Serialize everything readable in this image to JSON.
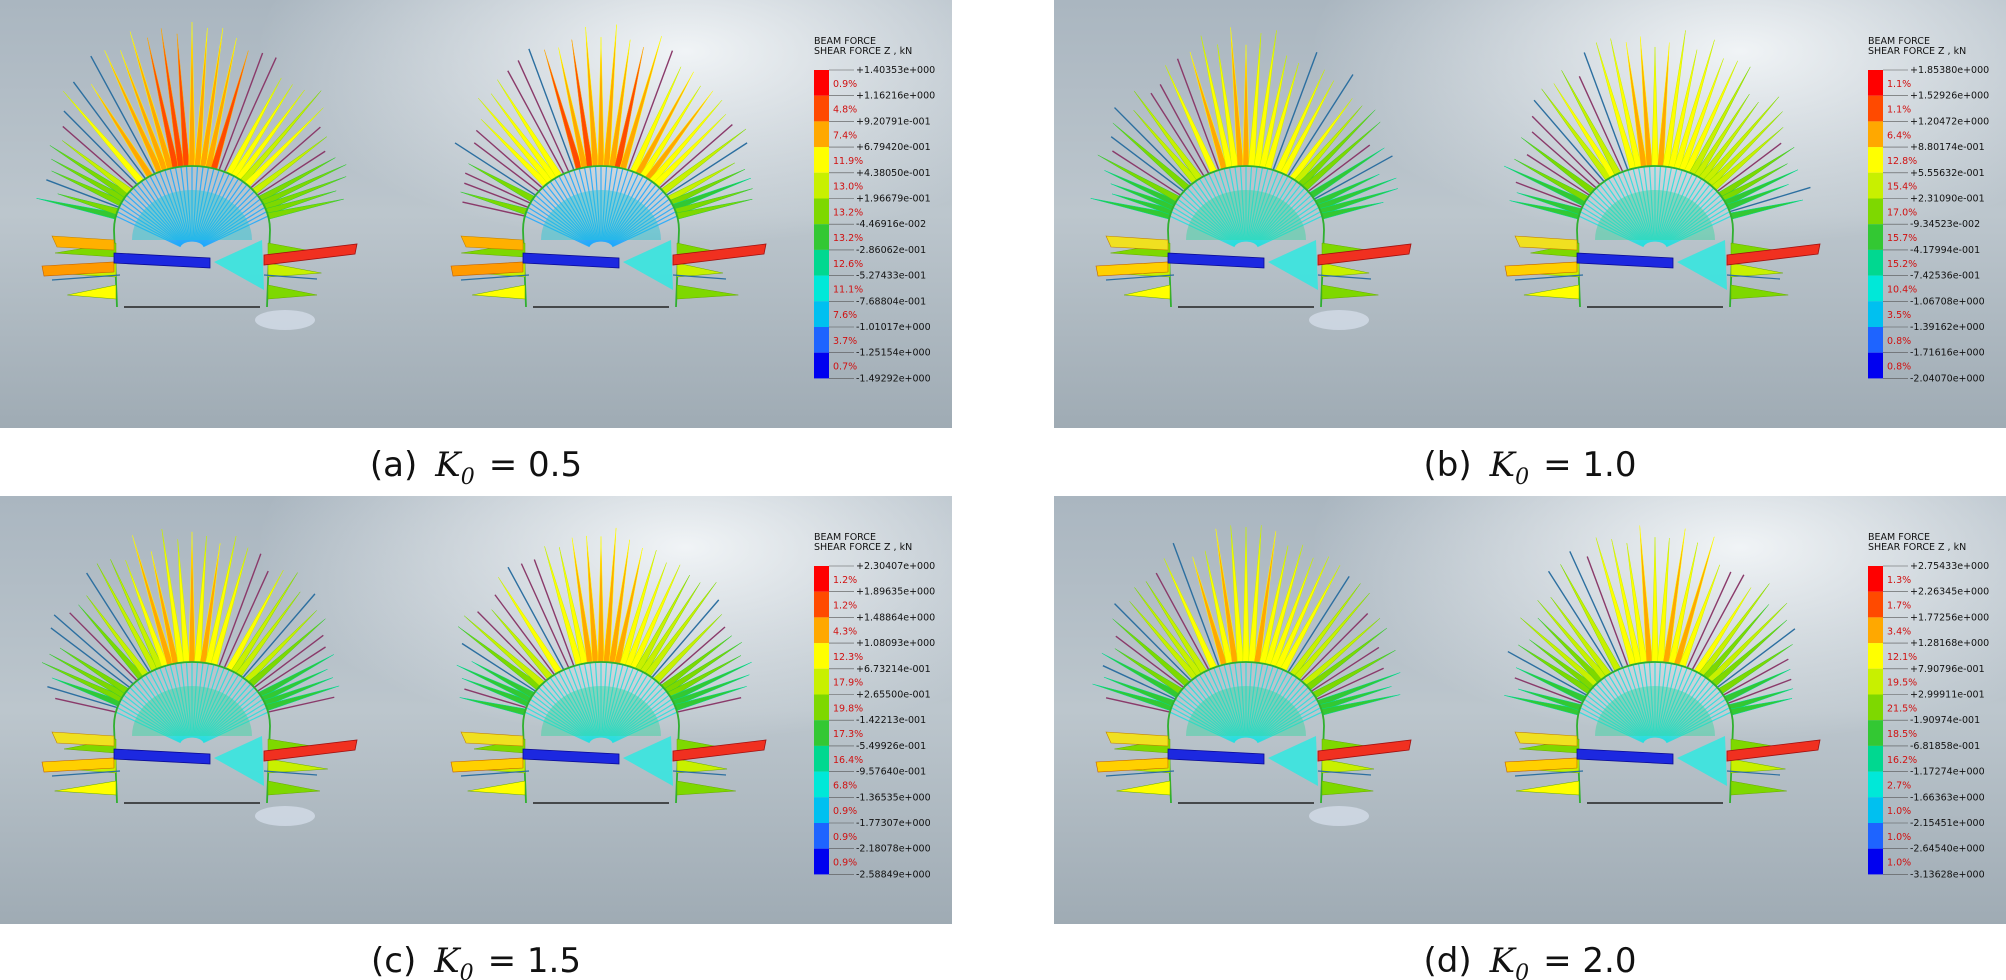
{
  "legend_colors": [
    "#ff0000",
    "#ff4a00",
    "#ffa800",
    "#ffff00",
    "#c8f000",
    "#7ed800",
    "#33c833",
    "#00d890",
    "#00e8d8",
    "#00c0f0",
    "#1e64ff",
    "#0000f0"
  ],
  "panels": [
    {
      "legend": {
        "title": [
          "BEAM FORCE",
          "SHEAR FORCE Z , kN"
        ],
        "values": [
          "+1.40353e+000",
          "+1.16216e+000",
          "+9.20791e-001",
          "+6.79420e-001",
          "+4.38050e-001",
          "+1.96679e-001",
          "-4.46916e-002",
          "-2.86062e-001",
          "-5.27433e-001",
          "-7.68804e-001",
          "-1.01017e+000",
          "-1.25154e+000",
          "-1.49292e+000"
        ],
        "percents": [
          "0.9%",
          "4.8%",
          "7.4%",
          "11.9%",
          "13.0%",
          "13.2%",
          "13.2%",
          "12.6%",
          "11.1%",
          "7.6%",
          "3.7%",
          "0.7%"
        ]
      },
      "caption": {
        "label": "(a)",
        "symbol": "K",
        "subscript": "0",
        "equals": "= 0.5"
      }
    },
    {
      "legend": {
        "title": [
          "BEAM FORCE",
          "SHEAR FORCE Z , kN"
        ],
        "values": [
          "+1.85380e+000",
          "+1.52926e+000",
          "+1.20472e+000",
          "+8.80174e-001",
          "+5.55632e-001",
          "+2.31090e-001",
          "-9.34523e-002",
          "-4.17994e-001",
          "-7.42536e-001",
          "-1.06708e+000",
          "-1.39162e+000",
          "-1.71616e+000",
          "-2.04070e+000"
        ],
        "percents": [
          "1.1%",
          "1.1%",
          "6.4%",
          "12.8%",
          "15.4%",
          "17.0%",
          "15.7%",
          "15.2%",
          "10.4%",
          "3.5%",
          "0.8%",
          "0.8%"
        ]
      },
      "caption": {
        "label": "(b)",
        "symbol": "K",
        "subscript": "0",
        "equals": "= 1.0"
      }
    },
    {
      "legend": {
        "title": [
          "BEAM FORCE",
          "SHEAR FORCE Z , kN"
        ],
        "values": [
          "+2.30407e+000",
          "+1.89635e+000",
          "+1.48864e+000",
          "+1.08093e+000",
          "+6.73214e-001",
          "+2.65500e-001",
          "-1.42213e-001",
          "-5.49926e-001",
          "-9.57640e-001",
          "-1.36535e+000",
          "-1.77307e+000",
          "-2.18078e+000",
          "-2.58849e+000"
        ],
        "percents": [
          "1.2%",
          "1.2%",
          "4.3%",
          "12.3%",
          "17.9%",
          "19.8%",
          "17.3%",
          "16.4%",
          "6.8%",
          "0.9%",
          "0.9%",
          "0.9%"
        ]
      },
      "caption": {
        "label": "(c)",
        "symbol": "K",
        "subscript": "0",
        "equals": "= 1.5"
      }
    },
    {
      "legend": {
        "title": [
          "BEAM FORCE",
          "SHEAR FORCE Z , kN"
        ],
        "values": [
          "+2.75433e+000",
          "+2.26345e+000",
          "+1.77256e+000",
          "+1.28168e+000",
          "+7.90796e-001",
          "+2.99911e-001",
          "-1.90974e-001",
          "-6.81858e-001",
          "-1.17274e+000",
          "-1.66363e+000",
          "-2.15451e+000",
          "-2.64540e+000",
          "-3.13628e+000"
        ],
        "percents": [
          "1.3%",
          "1.7%",
          "3.4%",
          "12.1%",
          "19.5%",
          "21.5%",
          "18.5%",
          "16.2%",
          "2.7%",
          "1.0%",
          "1.0%",
          "1.0%"
        ]
      },
      "caption": {
        "label": "(d)",
        "symbol": "K",
        "subscript": "0",
        "equals": "= 2.0"
      }
    }
  ]
}
